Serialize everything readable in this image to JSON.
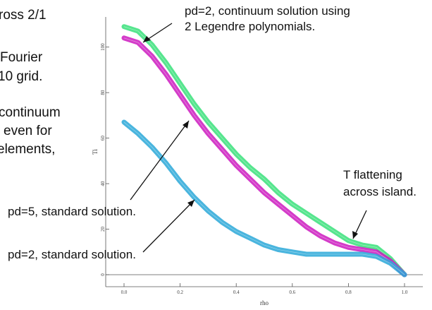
{
  "slide": {
    "left_text_lines": [
      "ross 2/1",
      "Fourier",
      "10 grid.",
      "continuum",
      "even for",
      "elements,"
    ]
  },
  "annotations": {
    "top_right_line1": "pd=2, continuum solution using",
    "top_right_line2": "2 Legendre polynomials.",
    "flatten_line1": "T flattening",
    "flatten_line2": "across island.",
    "pd5_label": "pd=5, standard solution.",
    "pd2_label": "pd=2, standard solution."
  },
  "colors": {
    "continuum_pd2": "#38e07a",
    "standard_pd5": "#cc1ac0",
    "standard_pd2": "#2aa8d8",
    "axis": "#555555"
  },
  "chart_data": {
    "type": "line",
    "xlabel": "rho",
    "ylabel": "Ti",
    "xlim": [
      0.0,
      1.0
    ],
    "ylim": [
      0,
      112
    ],
    "xticks": [
      0.0,
      0.2,
      0.4,
      0.6,
      0.8,
      1.0
    ],
    "xtick_labels": [
      "0.0",
      "0.2",
      "0.4",
      "0.6",
      "0.8",
      "1.0"
    ],
    "yticks": [
      0,
      20,
      40,
      60,
      80,
      100
    ],
    "ytick_labels": [
      "0",
      "20",
      "40",
      "60",
      "80",
      "100"
    ],
    "series": [
      {
        "color_key": "continuum_pd2",
        "x": [
          0.0,
          0.05,
          0.1,
          0.15,
          0.2,
          0.25,
          0.3,
          0.35,
          0.4,
          0.45,
          0.5,
          0.55,
          0.6,
          0.65,
          0.7,
          0.75,
          0.8,
          0.85,
          0.9,
          0.95,
          1.0
        ],
        "y": [
          109,
          107,
          101,
          93,
          84,
          75,
          67,
          60,
          53,
          47,
          42,
          36,
          31,
          27,
          23,
          19,
          15,
          13,
          12,
          7,
          0
        ]
      },
      {
        "color_key": "standard_pd5",
        "x": [
          0.0,
          0.05,
          0.1,
          0.15,
          0.2,
          0.25,
          0.3,
          0.35,
          0.4,
          0.45,
          0.5,
          0.55,
          0.6,
          0.65,
          0.7,
          0.75,
          0.8,
          0.85,
          0.9,
          0.95,
          1.0
        ],
        "y": [
          104,
          102,
          96,
          88,
          79,
          70,
          62,
          55,
          48,
          42,
          36,
          31,
          26,
          21,
          17,
          14,
          12,
          11,
          10,
          6,
          0
        ]
      },
      {
        "color_key": "standard_pd2",
        "x": [
          0.0,
          0.05,
          0.1,
          0.15,
          0.2,
          0.25,
          0.3,
          0.35,
          0.4,
          0.45,
          0.5,
          0.55,
          0.6,
          0.65,
          0.7,
          0.75,
          0.8,
          0.85,
          0.9,
          0.95,
          1.0
        ],
        "y": [
          67,
          62,
          56,
          49,
          41,
          34,
          28,
          23,
          19,
          16,
          13,
          11,
          10,
          9,
          9,
          9,
          9,
          9,
          8,
          5,
          0
        ]
      }
    ]
  }
}
